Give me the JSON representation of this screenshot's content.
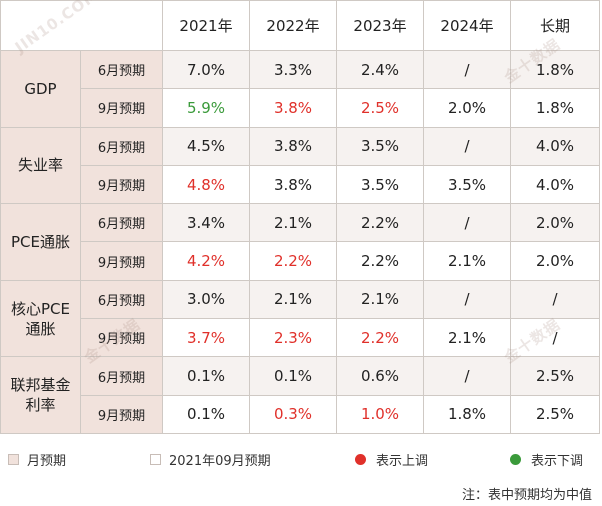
{
  "header": {
    "corner": "",
    "years": [
      "2021年",
      "2022年",
      "2023年",
      "2024年",
      "长期"
    ]
  },
  "groups": [
    {
      "name": "GDP",
      "rows": [
        {
          "label": "6月预期",
          "values": [
            "7.0%",
            "3.3%",
            "2.4%",
            "/",
            "1.8%"
          ]
        },
        {
          "label": "9月预期",
          "values": [
            "5.9%",
            "3.8%",
            "2.5%",
            "2.0%",
            "1.8%"
          ]
        }
      ]
    },
    {
      "name": "失业率",
      "rows": [
        {
          "label": "6月预期",
          "values": [
            "4.5%",
            "3.8%",
            "3.5%",
            "/",
            "4.0%"
          ]
        },
        {
          "label": "9月预期",
          "values": [
            "4.8%",
            "3.8%",
            "3.5%",
            "3.5%",
            "4.0%"
          ]
        }
      ]
    },
    {
      "name": "PCE通胀",
      "rows": [
        {
          "label": "6月预期",
          "values": [
            "3.4%",
            "2.1%",
            "2.2%",
            "/",
            "2.0%"
          ]
        },
        {
          "label": "9月预期",
          "values": [
            "4.2%",
            "2.2%",
            "2.2%",
            "2.1%",
            "2.0%"
          ]
        }
      ]
    },
    {
      "name_line1": "核心PCE",
      "name_line2": "通胀",
      "rows": [
        {
          "label": "6月预期",
          "values": [
            "3.0%",
            "2.1%",
            "2.1%",
            "/",
            "/"
          ]
        },
        {
          "label": "9月预期",
          "values": [
            "3.7%",
            "2.3%",
            "2.2%",
            "2.1%",
            "/"
          ]
        }
      ]
    },
    {
      "name_line1": "联邦基金",
      "name_line2": "利率",
      "rows": [
        {
          "label": "6月预期",
          "values": [
            "0.1%",
            "0.1%",
            "0.6%",
            "/",
            "2.5%"
          ]
        },
        {
          "label": "9月预期",
          "values": [
            "0.1%",
            "0.3%",
            "1.0%",
            "1.8%",
            "2.5%"
          ]
        }
      ]
    }
  ],
  "legend": {
    "june": "月预期",
    "sept": "2021年09月预期",
    "up": "表示上调",
    "down": "表示下调"
  },
  "note": "注：表中预期均为中值",
  "watermark": {
    "cn": "金十数据",
    "en": "JIN10.COM"
  },
  "colors": {
    "up": "#e0302a",
    "down": "#3a9a3a",
    "label_bg": "#f1e2dc"
  }
}
